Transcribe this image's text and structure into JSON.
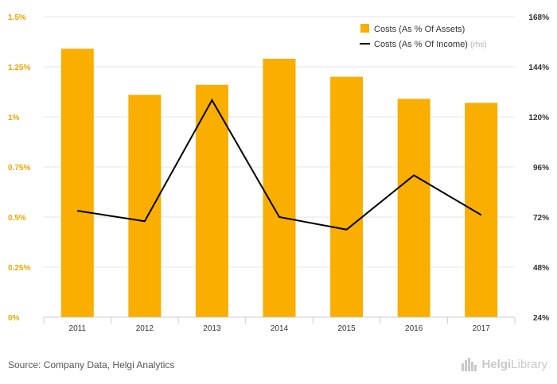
{
  "chart_data": {
    "type": "bar",
    "categories": [
      "2011",
      "2012",
      "2013",
      "2014",
      "2015",
      "2016",
      "2017"
    ],
    "series": [
      {
        "name": "Costs (As % Of Assets)",
        "type": "bar",
        "axis": "left",
        "color": "#f9ae00",
        "values": [
          1.34,
          1.11,
          1.16,
          1.29,
          1.2,
          1.09,
          1.07
        ]
      },
      {
        "name": "Costs (As % Of Income)",
        "name_suffix": "(rhs)",
        "type": "line",
        "axis": "right",
        "color": "#000000",
        "values": [
          75,
          70,
          128,
          72,
          66,
          92,
          73
        ]
      }
    ],
    "y_left": {
      "min": 0,
      "max": 1.5,
      "ticks": [
        "0%",
        "0.25%",
        "0.5%",
        "0.75%",
        "1%",
        "1.25%",
        "1.5%"
      ]
    },
    "y_right": {
      "min": 24,
      "max": 168,
      "ticks": [
        "24%",
        "48%",
        "72%",
        "96%",
        "120%",
        "144%",
        "168%"
      ]
    },
    "grid": true,
    "legend_position": "top-right"
  },
  "footer": {
    "source": "Source: Company Data, Helgi Analytics",
    "logo_prefix": "Helgi",
    "logo_suffix": "Library"
  }
}
